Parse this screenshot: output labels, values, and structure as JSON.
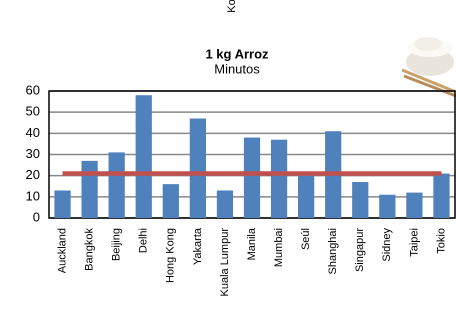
{
  "chart_data": {
    "type": "bar",
    "title": "1 kg Arroz",
    "subtitle": "Minutos",
    "annotation": "Ko",
    "categories": [
      "Auckland",
      "Bangkok",
      "Beijing",
      "Delhi",
      "Hong Kong",
      "Yakarta",
      "Kuala Lumpur",
      "Manila",
      "Mumbai",
      "Seúl",
      "Shanghai",
      "Singapur",
      "Sidney",
      "Taipei",
      "Tokio"
    ],
    "series": [
      {
        "type": "bar",
        "color": "#4f81bd",
        "values": [
          13,
          27,
          31,
          58,
          16,
          47,
          13,
          38,
          37,
          20,
          41,
          17,
          11,
          12,
          21
        ]
      },
      {
        "type": "line",
        "color": "#c0504d",
        "values": [
          21,
          21,
          21,
          21,
          21,
          21,
          21,
          21,
          21,
          21,
          21,
          21,
          21,
          21,
          21
        ]
      }
    ],
    "ylim": [
      0,
      60
    ],
    "yticks": [
      0,
      10,
      20,
      30,
      40,
      50,
      60
    ],
    "grid": true
  }
}
